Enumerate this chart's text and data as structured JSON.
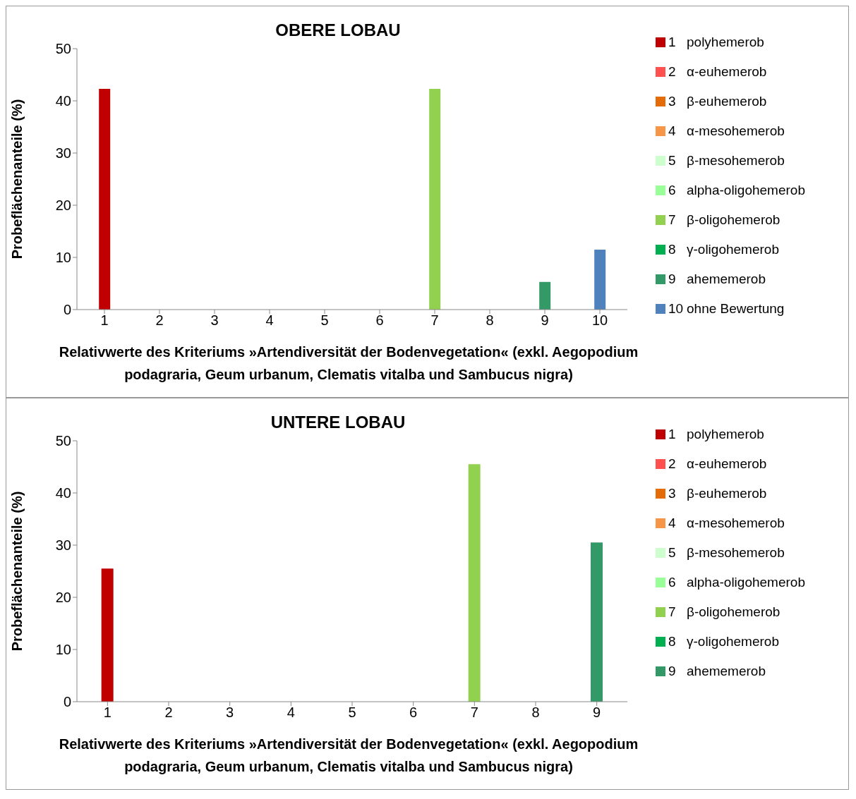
{
  "chart_data": [
    {
      "type": "bar",
      "title": "OBERE LOBAU",
      "xlabel": "Relativwerte des Kriteriums »Artendiversität der Bodenvegetation« (exkl. Aegopodium podagraria, Geum urbanum, Clematis vitalba und Sambucus nigra)",
      "ylabel": "Probeflächenanteile (%)",
      "categories": [
        "1",
        "2",
        "3",
        "4",
        "5",
        "6",
        "7",
        "8",
        "9",
        "10"
      ],
      "stacked": true,
      "ylim": [
        0,
        50
      ],
      "yticks": [
        0,
        10,
        20,
        30,
        40,
        50
      ],
      "grid": false,
      "legend": "right",
      "series": [
        {
          "name": "polyhemerob",
          "color": "#c00000",
          "values": [
            42.3,
            null,
            null,
            null,
            null,
            null,
            null,
            null,
            null,
            null
          ]
        },
        {
          "name": "α-euhemerob",
          "color": "#ff5050",
          "values": [
            null,
            0,
            null,
            null,
            null,
            null,
            null,
            null,
            null,
            null
          ]
        },
        {
          "name": "β-euhemerob",
          "color": "#e36c09",
          "values": [
            null,
            null,
            0,
            null,
            null,
            null,
            null,
            null,
            null,
            null
          ]
        },
        {
          "name": "α-mesohemerob",
          "color": "#f79646",
          "values": [
            null,
            null,
            null,
            0,
            null,
            null,
            null,
            null,
            null,
            null
          ]
        },
        {
          "name": "β-mesohemerob",
          "color": "#ccffcc",
          "values": [
            null,
            null,
            null,
            null,
            0,
            null,
            null,
            null,
            null,
            null
          ]
        },
        {
          "name": "alpha-oligohemerob",
          "color": "#99ff99",
          "values": [
            null,
            null,
            null,
            null,
            null,
            0,
            null,
            null,
            null,
            null
          ]
        },
        {
          "name": "β-oligohemerob",
          "color": "#92d050",
          "values": [
            null,
            null,
            null,
            null,
            null,
            null,
            42.3,
            null,
            null,
            null
          ]
        },
        {
          "name": "γ-oligohemerob",
          "color": "#00b050",
          "values": [
            null,
            null,
            null,
            null,
            null,
            null,
            null,
            0,
            null,
            null
          ]
        },
        {
          "name": "ahememerob",
          "color": "#339966",
          "values": [
            null,
            null,
            null,
            null,
            null,
            null,
            null,
            null,
            5.3,
            null
          ]
        },
        {
          "name": "ohne Bewertung",
          "color": "#4f81bd",
          "values": [
            null,
            null,
            null,
            null,
            null,
            null,
            null,
            null,
            null,
            11.5
          ]
        }
      ]
    },
    {
      "type": "bar",
      "title": "UNTERE LOBAU",
      "xlabel": "Relativwerte des Kriteriums »Artendiversität der Bodenvegetation« (exkl. Aegopodium podagraria, Geum urbanum, Clematis vitalba und Sambucus nigra)",
      "ylabel": "Probeflächenanteile (%)",
      "categories": [
        "1",
        "2",
        "3",
        "4",
        "5",
        "6",
        "7",
        "8",
        "9"
      ],
      "stacked": true,
      "ylim": [
        0,
        50
      ],
      "yticks": [
        0,
        10,
        20,
        30,
        40,
        50
      ],
      "grid": false,
      "legend": "right",
      "series": [
        {
          "name": "polyhemerob",
          "color": "#c00000",
          "values": [
            25.5,
            null,
            null,
            null,
            null,
            null,
            null,
            null,
            null
          ]
        },
        {
          "name": "α-euhemerob",
          "color": "#ff5050",
          "values": [
            null,
            0,
            null,
            null,
            null,
            null,
            null,
            null,
            null
          ]
        },
        {
          "name": "β-euhemerob",
          "color": "#e36c09",
          "values": [
            null,
            null,
            0,
            null,
            null,
            null,
            null,
            null,
            null
          ]
        },
        {
          "name": "α-mesohemerob",
          "color": "#f79646",
          "values": [
            null,
            null,
            null,
            0,
            null,
            null,
            null,
            null,
            null
          ]
        },
        {
          "name": "β-mesohemerob",
          "color": "#ccffcc",
          "values": [
            null,
            null,
            null,
            null,
            0,
            null,
            null,
            null,
            null
          ]
        },
        {
          "name": "alpha-oligohemerob",
          "color": "#99ff99",
          "values": [
            null,
            null,
            null,
            null,
            null,
            0,
            null,
            null,
            null
          ]
        },
        {
          "name": "β-oligohemerob",
          "color": "#92d050",
          "values": [
            null,
            null,
            null,
            null,
            null,
            null,
            45.5,
            null,
            null
          ]
        },
        {
          "name": "γ-oligohemerob",
          "color": "#00b050",
          "values": [
            null,
            null,
            null,
            null,
            null,
            null,
            null,
            0,
            null
          ]
        },
        {
          "name": "ahememerob",
          "color": "#339966",
          "values": [
            null,
            null,
            null,
            null,
            null,
            null,
            null,
            null,
            30.5
          ]
        }
      ]
    }
  ]
}
